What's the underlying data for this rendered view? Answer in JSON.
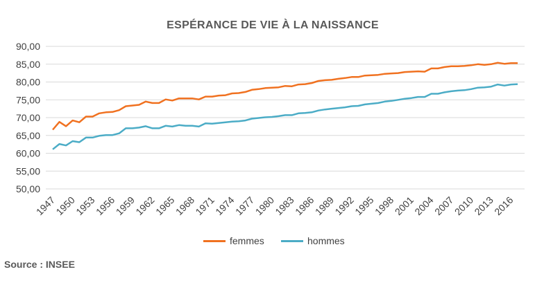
{
  "chart_data": {
    "type": "line",
    "title": "ESPÉRANCE DE VIE À LA NAISSANCE",
    "xlabel": "",
    "ylabel": "",
    "ylim": [
      50,
      90
    ],
    "yticks": [
      "50,00",
      "55,00",
      "60,00",
      "65,00",
      "70,00",
      "75,00",
      "80,00",
      "85,00",
      "90,00"
    ],
    "xtick_labels": [
      "1947",
      "1950",
      "1953",
      "1956",
      "1959",
      "1962",
      "1965",
      "1968",
      "1971",
      "1974",
      "1977",
      "1980",
      "1983",
      "1986",
      "1989",
      "1992",
      "1995",
      "1998",
      "2001",
      "2004",
      "2007",
      "2010",
      "2013",
      "2016"
    ],
    "grid": true,
    "legend_position": "bottom",
    "x": [
      1947,
      1948,
      1949,
      1950,
      1951,
      1952,
      1953,
      1954,
      1955,
      1956,
      1957,
      1958,
      1959,
      1960,
      1961,
      1962,
      1963,
      1964,
      1965,
      1966,
      1967,
      1968,
      1969,
      1970,
      1971,
      1972,
      1973,
      1974,
      1975,
      1976,
      1977,
      1978,
      1979,
      1980,
      1981,
      1982,
      1983,
      1984,
      1985,
      1986,
      1987,
      1988,
      1989,
      1990,
      1991,
      1992,
      1993,
      1994,
      1995,
      1996,
      1997,
      1998,
      1999,
      2000,
      2001,
      2002,
      2003,
      2004,
      2005,
      2006,
      2007,
      2008,
      2009,
      2010,
      2011,
      2012,
      2013,
      2014,
      2015,
      2016,
      2017
    ],
    "series": [
      {
        "name": "femmes",
        "color": "#f07120",
        "values": [
          66.6,
          68.8,
          67.6,
          69.2,
          68.7,
          70.3,
          70.3,
          71.2,
          71.5,
          71.6,
          72.1,
          73.2,
          73.4,
          73.6,
          74.5,
          74.1,
          74.1,
          75.1,
          74.8,
          75.4,
          75.4,
          75.4,
          75.1,
          75.9,
          75.9,
          76.2,
          76.3,
          76.8,
          76.9,
          77.2,
          77.8,
          78.0,
          78.3,
          78.4,
          78.5,
          78.9,
          78.8,
          79.3,
          79.4,
          79.7,
          80.3,
          80.5,
          80.6,
          80.9,
          81.1,
          81.4,
          81.4,
          81.8,
          81.9,
          82.0,
          82.3,
          82.4,
          82.5,
          82.8,
          82.9,
          83.0,
          82.9,
          83.8,
          83.8,
          84.2,
          84.4,
          84.4,
          84.5,
          84.7,
          85.0,
          84.8,
          85.0,
          85.4,
          85.1,
          85.3,
          85.3
        ]
      },
      {
        "name": "hommes",
        "color": "#4bacc6",
        "values": [
          61.1,
          62.6,
          62.2,
          63.4,
          63.1,
          64.4,
          64.4,
          64.9,
          65.1,
          65.1,
          65.6,
          67.0,
          67.0,
          67.2,
          67.6,
          67.0,
          67.0,
          67.7,
          67.5,
          67.9,
          67.7,
          67.7,
          67.5,
          68.4,
          68.3,
          68.5,
          68.7,
          68.9,
          69.0,
          69.2,
          69.7,
          69.9,
          70.1,
          70.2,
          70.4,
          70.7,
          70.7,
          71.2,
          71.3,
          71.5,
          72.0,
          72.3,
          72.5,
          72.7,
          72.9,
          73.2,
          73.3,
          73.7,
          73.9,
          74.1,
          74.5,
          74.7,
          75.0,
          75.3,
          75.5,
          75.8,
          75.8,
          76.7,
          76.7,
          77.1,
          77.4,
          77.6,
          77.7,
          78.0,
          78.4,
          78.5,
          78.7,
          79.3,
          79.0,
          79.3,
          79.4
        ]
      }
    ]
  },
  "source": "Source : INSEE"
}
